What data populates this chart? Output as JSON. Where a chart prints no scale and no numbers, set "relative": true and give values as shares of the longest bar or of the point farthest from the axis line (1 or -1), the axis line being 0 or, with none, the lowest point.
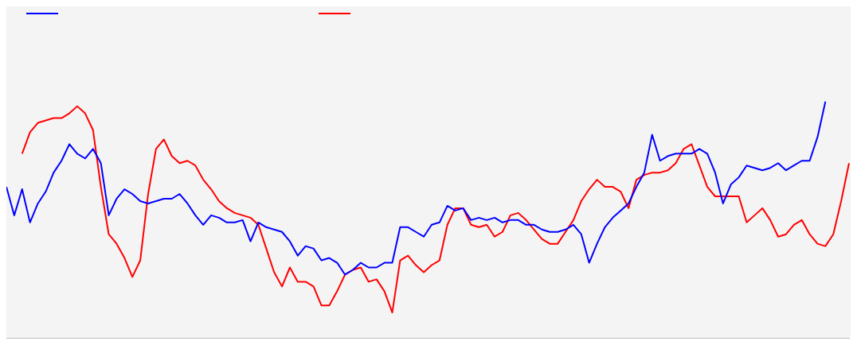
{
  "chart_data": {
    "type": "line",
    "relative": true,
    "grid": false,
    "marker": "none",
    "line_style": "solid",
    "categories": [
      null,
      null,
      null,
      null,
      null,
      null,
      null,
      null,
      null,
      null,
      null,
      null,
      null,
      null,
      null,
      null,
      null,
      null,
      null,
      null,
      null,
      null,
      null,
      null,
      null,
      null,
      null,
      null,
      null,
      null,
      null,
      null,
      null,
      null,
      null,
      null,
      null,
      null,
      null,
      null,
      null,
      null,
      null,
      null,
      null,
      null,
      null,
      null,
      null,
      null,
      null,
      null,
      null,
      null,
      null,
      null,
      null,
      null,
      null,
      null,
      null,
      null,
      null,
      null,
      null,
      null,
      null,
      null,
      null,
      null,
      null,
      null,
      null,
      null,
      null,
      null,
      null,
      null,
      null,
      null,
      null,
      null,
      null,
      null,
      null,
      null,
      null,
      null,
      null,
      null,
      null,
      null,
      null,
      null,
      null,
      null,
      null,
      null,
      null,
      null,
      null,
      null,
      null,
      null,
      null,
      null,
      null,
      null
    ],
    "series": [
      {
        "color": "#0000ff",
        "values": [
          0.64,
          0.52,
          0.63,
          0.49,
          0.57,
          0.62,
          0.7,
          0.75,
          0.82,
          0.78,
          0.76,
          0.8,
          0.74,
          0.52,
          0.59,
          0.63,
          0.61,
          0.58,
          0.57,
          0.58,
          0.59,
          0.59,
          0.61,
          0.57,
          0.52,
          0.48,
          0.52,
          0.51,
          0.49,
          0.49,
          0.5,
          0.41,
          0.49,
          0.47,
          0.46,
          0.45,
          0.41,
          0.35,
          0.39,
          0.38,
          0.33,
          0.34,
          0.32,
          0.27,
          0.29,
          0.32,
          0.3,
          0.3,
          0.32,
          0.32,
          0.47,
          0.47,
          0.45,
          0.43,
          0.48,
          0.49,
          0.56,
          0.54,
          0.55,
          0.5,
          0.51,
          0.5,
          0.51,
          0.49,
          0.5,
          0.5,
          0.48,
          0.48,
          0.46,
          0.45,
          0.45,
          0.46,
          0.48,
          0.44,
          0.32,
          0.4,
          0.47,
          0.51,
          0.54,
          0.57,
          0.64,
          0.7,
          0.86,
          0.75,
          0.77,
          0.78,
          0.78,
          0.78,
          0.8,
          0.78,
          0.7,
          0.57,
          0.65,
          0.68,
          0.73,
          0.72,
          0.71,
          0.72,
          0.74,
          0.71,
          0.73,
          0.75,
          0.75,
          0.85,
          1.0,
          null,
          null,
          null
        ]
      },
      {
        "color": "#ff0000",
        "values": [
          null,
          null,
          0.78,
          0.87,
          0.91,
          0.92,
          0.93,
          0.93,
          0.95,
          0.98,
          0.95,
          0.88,
          0.64,
          0.44,
          0.4,
          0.34,
          0.26,
          0.33,
          0.61,
          0.8,
          0.84,
          0.77,
          0.74,
          0.75,
          0.73,
          0.67,
          0.63,
          0.58,
          0.55,
          0.53,
          0.52,
          0.51,
          0.48,
          0.38,
          0.28,
          0.22,
          0.3,
          0.24,
          0.24,
          0.22,
          0.14,
          0.14,
          0.2,
          0.27,
          0.29,
          0.3,
          0.24,
          0.25,
          0.2,
          0.11,
          0.33,
          0.35,
          0.31,
          0.28,
          0.31,
          0.33,
          0.48,
          0.55,
          0.55,
          0.48,
          0.47,
          0.48,
          0.43,
          0.45,
          0.52,
          0.53,
          0.5,
          0.46,
          0.42,
          0.4,
          0.4,
          0.45,
          0.5,
          0.58,
          0.63,
          0.67,
          0.64,
          0.64,
          0.62,
          0.55,
          0.67,
          0.69,
          0.7,
          0.7,
          0.71,
          0.74,
          0.8,
          0.82,
          0.73,
          0.64,
          0.6,
          0.6,
          0.6,
          0.6,
          0.49,
          0.52,
          0.55,
          0.5,
          0.43,
          0.44,
          0.48,
          0.5,
          0.44,
          0.4,
          0.39,
          0.44,
          0.58,
          0.74
        ]
      }
    ]
  }
}
